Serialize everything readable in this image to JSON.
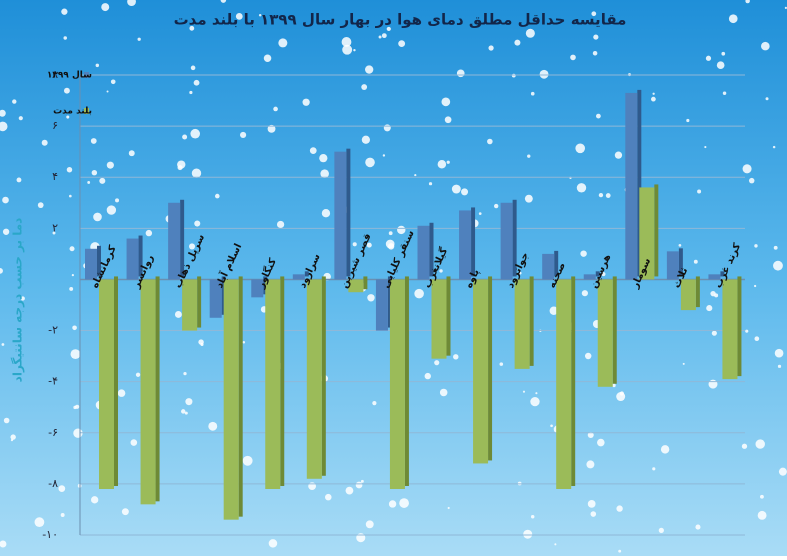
{
  "chart_data": {
    "type": "bar",
    "title": "مقایسه حداقل مطلق دمای هوا در بهار سال ۱۳۹۹ با بلند مدت",
    "y_label": "دما بر حسب درجه سانتیگراد",
    "categories": [
      "کرمانشاه",
      "روانسر",
      "سرپل ذهاب",
      "اسلام آباد",
      "کنگاور",
      "سرارود",
      "قصر شیرین",
      "سنقر کلیایی",
      "گیلانغرب",
      "پاوه",
      "جوانرود",
      "صحنه",
      "هرسین",
      "سومار",
      "ثلاث",
      "کرند غرب"
    ],
    "series": [
      {
        "name": "سال ۱۳۹۹",
        "color": "#4f81bd",
        "values": [
          1.2,
          1.6,
          3.0,
          -1.5,
          -0.7,
          0.2,
          5.0,
          -2.0,
          2.1,
          2.7,
          3.0,
          1.0,
          0.2,
          7.3,
          1.1,
          0.2
        ]
      },
      {
        "name": "بلند مدت",
        "color": "#9bbb59",
        "values": [
          -8.2,
          -8.8,
          -2.0,
          -9.4,
          -8.2,
          -7.8,
          -0.5,
          -8.2,
          -3.1,
          -7.2,
          -3.5,
          -8.2,
          -4.2,
          3.6,
          -1.2,
          -3.9
        ]
      }
    ],
    "ylim": [
      -10,
      8
    ],
    "yticks": [
      {
        "value": -10,
        "label": "-۱۰"
      },
      {
        "value": -8,
        "label": "-۸"
      },
      {
        "value": -6,
        "label": "-۶"
      },
      {
        "value": -4,
        "label": "-۴"
      },
      {
        "value": -2,
        "label": "-۲"
      },
      {
        "value": 2,
        "label": "۲"
      },
      {
        "value": 4,
        "label": "۴"
      },
      {
        "value": 6,
        "label": "۶"
      },
      {
        "value": 8,
        "label": "۸"
      }
    ],
    "grid": true,
    "legend": "top-left"
  }
}
